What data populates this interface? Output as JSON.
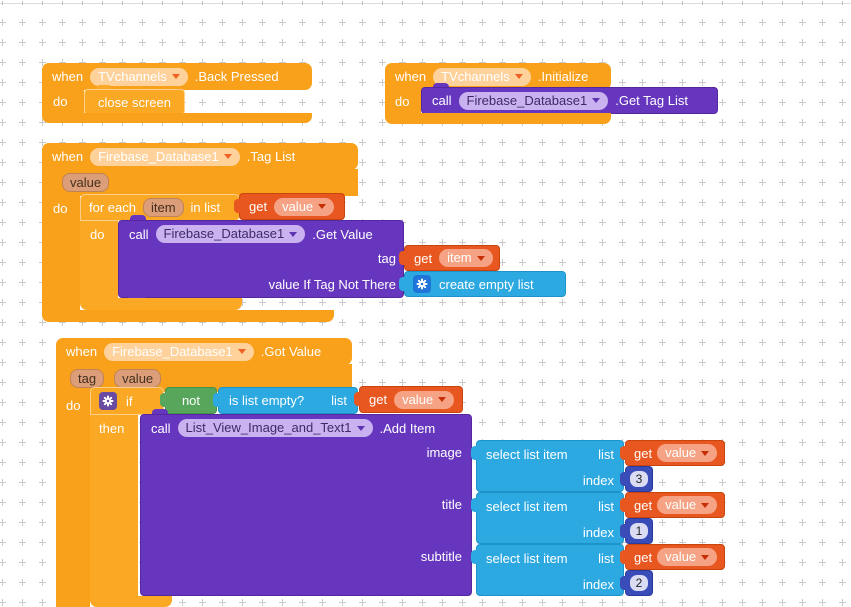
{
  "workspace": {
    "grid_plus_color": "#c9c9c9"
  },
  "colors": {
    "event_block": "#f9a11b",
    "control_block": "#fba824",
    "method_block": "#6636be",
    "variable_block": "#e8571f",
    "list_block": "#2da9e2",
    "logic_block": "#58a55c",
    "math_block": "#3a4cb8",
    "parameter_chip": "#dc9e79"
  },
  "back_pressed": {
    "when": "when",
    "component": "TVchannels",
    "event": ".Back Pressed",
    "do": "do",
    "close_screen": "close screen"
  },
  "initialize": {
    "when": "when",
    "component": "TVchannels",
    "event": ".Initialize",
    "do": "do",
    "call": "call",
    "component2": "Firebase_Database1",
    "method": ".Get Tag List"
  },
  "tag_list": {
    "when": "when",
    "component": "Firebase_Database1",
    "event": ".Tag List",
    "param_value": "value",
    "do": "do",
    "for_each": {
      "label1": "for each",
      "var": "item",
      "label2": "in list",
      "do": "do"
    },
    "get_value": {
      "get": "get",
      "var": "value"
    },
    "call": {
      "call": "call",
      "component": "Firebase_Database1",
      "method": ".Get Value",
      "arg_tag": "tag",
      "arg_value_if": "value If Tag Not There"
    },
    "get_item": {
      "get": "get",
      "var": "item"
    },
    "create_empty_list": "create empty list"
  },
  "got_value": {
    "when": "when",
    "component": "Firebase_Database1",
    "event": ".Got Value",
    "param_tag": "tag",
    "param_value": "value",
    "do": "do",
    "if": "if",
    "then": "then",
    "not": "not",
    "is_list_empty": {
      "label": "is list empty?",
      "arg": "list"
    },
    "get_value": {
      "get": "get",
      "var": "value"
    },
    "call": {
      "call": "call",
      "component": "List_View_Image_and_Text1",
      "method": ".Add Item"
    },
    "rows": [
      {
        "arg": "image",
        "select": "select list item",
        "list": "list",
        "get": "get",
        "var": "value",
        "index_label": "index",
        "index": "3"
      },
      {
        "arg": "title",
        "select": "select list item",
        "list": "list",
        "get": "get",
        "var": "value",
        "index_label": "index",
        "index": "1"
      },
      {
        "arg": "subtitle",
        "select": "select list item",
        "list": "list",
        "get": "get",
        "var": "value",
        "index_label": "index",
        "index": "2"
      }
    ]
  }
}
